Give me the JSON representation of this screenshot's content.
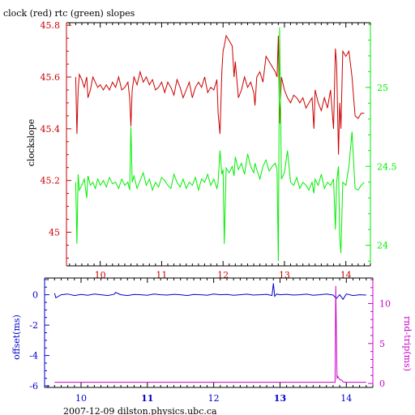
{
  "title": "clock (red) rtc (green) slopes",
  "footer": "2007-12-09  dilston.physics.ubc.ca",
  "colors": {
    "red": "#cc0000",
    "green": "#00ee00",
    "blue": "#0000cc",
    "magenta": "#cc00cc",
    "axis": "#000000"
  },
  "chart_data": [
    {
      "type": "line",
      "title": "clock (red) rtc (green) slopes",
      "ylabel": "clockslope",
      "xlim": [
        9.45,
        14.4
      ],
      "ylim": [
        44.87,
        45.81
      ],
      "y2lim": [
        23.87,
        25.41
      ],
      "xticks": [
        "10",
        "11",
        "12",
        "13",
        "14"
      ],
      "yticks": [
        "45",
        "45.2",
        "45.4",
        "45.6",
        "45.8"
      ],
      "y2ticks": [
        "24",
        "24.5",
        "25"
      ],
      "series": [
        {
          "name": "clock",
          "axis": "left",
          "color": "#cc0000",
          "x": [
            9.6,
            9.62,
            9.64,
            9.66,
            9.7,
            9.74,
            9.78,
            9.8,
            9.84,
            9.88,
            9.92,
            9.96,
            10.0,
            10.05,
            10.1,
            10.15,
            10.2,
            10.25,
            10.3,
            10.35,
            10.4,
            10.45,
            10.48,
            10.5,
            10.52,
            10.55,
            10.6,
            10.65,
            10.7,
            10.75,
            10.8,
            10.85,
            10.9,
            10.95,
            11.0,
            11.05,
            11.1,
            11.15,
            11.2,
            11.25,
            11.3,
            11.35,
            11.4,
            11.45,
            11.5,
            11.55,
            11.6,
            11.65,
            11.7,
            11.75,
            11.8,
            11.85,
            11.9,
            11.92,
            11.95,
            11.98,
            12.0,
            12.02,
            12.05,
            12.1,
            12.15,
            12.18,
            12.2,
            12.25,
            12.3,
            12.35,
            12.4,
            12.45,
            12.5,
            12.52,
            12.55,
            12.6,
            12.65,
            12.7,
            12.75,
            12.8,
            12.85,
            12.88,
            12.9,
            12.92,
            12.95,
            13.0,
            13.05,
            13.1,
            13.15,
            13.2,
            13.25,
            13.3,
            13.35,
            13.4,
            13.45,
            13.48,
            13.5,
            13.55,
            13.6,
            13.65,
            13.7,
            13.75,
            13.8,
            13.83,
            13.85,
            13.88,
            13.9,
            13.92,
            13.95,
            14.0,
            14.05,
            14.1,
            14.15,
            14.2,
            14.25,
            14.3
          ],
          "y": [
            45.6,
            45.38,
            45.55,
            45.61,
            45.59,
            45.56,
            45.6,
            45.52,
            45.55,
            45.6,
            45.58,
            45.56,
            45.57,
            45.55,
            45.57,
            45.55,
            45.58,
            45.56,
            45.6,
            45.55,
            45.56,
            45.58,
            45.52,
            45.41,
            45.55,
            45.6,
            45.57,
            45.62,
            45.58,
            45.6,
            45.57,
            45.59,
            45.55,
            45.56,
            45.58,
            45.54,
            45.58,
            45.56,
            45.53,
            45.59,
            45.56,
            45.52,
            45.55,
            45.58,
            45.52,
            45.56,
            45.58,
            45.56,
            45.6,
            45.54,
            45.56,
            45.55,
            45.59,
            45.46,
            45.38,
            45.62,
            45.7,
            45.72,
            45.76,
            45.74,
            45.72,
            45.6,
            45.66,
            45.52,
            45.55,
            45.6,
            45.56,
            45.58,
            45.54,
            45.49,
            45.6,
            45.62,
            45.58,
            45.68,
            45.66,
            45.64,
            45.62,
            45.6,
            45.76,
            45.42,
            45.6,
            45.55,
            45.52,
            45.5,
            45.53,
            45.52,
            45.5,
            45.52,
            45.48,
            45.5,
            45.52,
            45.4,
            45.55,
            45.5,
            45.47,
            45.52,
            45.48,
            45.55,
            45.4,
            45.71,
            45.65,
            45.3,
            45.5,
            45.4,
            45.7,
            45.68,
            45.7,
            45.6,
            45.45,
            45.44,
            45.46,
            45.46
          ]
        },
        {
          "name": "rtc",
          "axis": "right",
          "color": "#00ee00",
          "x": [
            9.6,
            9.62,
            9.64,
            9.66,
            9.7,
            9.74,
            9.78,
            9.8,
            9.84,
            9.88,
            9.92,
            9.96,
            10.0,
            10.05,
            10.1,
            10.15,
            10.2,
            10.25,
            10.3,
            10.35,
            10.4,
            10.45,
            10.48,
            10.5,
            10.52,
            10.55,
            10.6,
            10.65,
            10.7,
            10.75,
            10.8,
            10.85,
            10.9,
            10.95,
            11.0,
            11.05,
            11.1,
            11.15,
            11.2,
            11.25,
            11.3,
            11.35,
            11.4,
            11.45,
            11.5,
            11.55,
            11.6,
            11.65,
            11.7,
            11.75,
            11.8,
            11.85,
            11.9,
            11.92,
            11.95,
            11.98,
            12.0,
            12.02,
            12.05,
            12.1,
            12.15,
            12.18,
            12.2,
            12.25,
            12.3,
            12.35,
            12.4,
            12.45,
            12.5,
            12.52,
            12.55,
            12.6,
            12.65,
            12.7,
            12.75,
            12.8,
            12.85,
            12.88,
            12.9,
            12.92,
            12.95,
            13.0,
            13.05,
            13.1,
            13.15,
            13.2,
            13.25,
            13.3,
            13.35,
            13.4,
            13.45,
            13.48,
            13.5,
            13.55,
            13.6,
            13.65,
            13.7,
            13.75,
            13.8,
            13.83,
            13.85,
            13.88,
            13.9,
            13.92,
            13.95,
            14.0,
            14.05,
            14.1,
            14.15,
            14.2,
            14.25,
            14.3
          ],
          "y": [
            24.4,
            24.01,
            24.45,
            24.35,
            24.38,
            24.42,
            24.3,
            24.44,
            24.38,
            24.4,
            24.36,
            24.42,
            24.38,
            24.41,
            24.37,
            24.43,
            24.39,
            24.4,
            24.36,
            24.42,
            24.38,
            24.4,
            24.35,
            24.75,
            24.4,
            24.44,
            24.36,
            24.41,
            24.46,
            24.38,
            24.42,
            24.35,
            24.4,
            24.37,
            24.43,
            24.41,
            24.38,
            24.36,
            24.45,
            24.4,
            24.37,
            24.42,
            24.36,
            24.4,
            24.38,
            24.43,
            24.35,
            24.42,
            24.4,
            24.45,
            24.38,
            24.42,
            24.36,
            24.4,
            24.6,
            24.45,
            24.48,
            24.01,
            24.49,
            24.46,
            24.5,
            24.44,
            24.56,
            24.48,
            24.52,
            24.45,
            24.58,
            24.5,
            24.46,
            24.52,
            24.48,
            24.42,
            24.5,
            24.54,
            24.47,
            24.5,
            24.52,
            24.48,
            23.9,
            25.38,
            24.42,
            24.46,
            24.6,
            24.4,
            24.38,
            24.43,
            24.36,
            24.4,
            24.38,
            24.35,
            24.4,
            24.33,
            24.42,
            24.38,
            24.45,
            24.36,
            24.4,
            24.38,
            24.42,
            24.1,
            24.4,
            24.5,
            24.05,
            23.95,
            24.4,
            24.38,
            24.5,
            24.72,
            24.36,
            24.35,
            24.38,
            24.4
          ]
        }
      ]
    },
    {
      "type": "line",
      "ylabel": "offset(ms)",
      "y2label": "rnd-trip(ms)",
      "xlim": [
        9.45,
        14.4
      ],
      "ylim": [
        -6.1,
        1.1
      ],
      "y2lim": [
        -0.5,
        13.2
      ],
      "xticks": [
        "10",
        "11",
        "12",
        "13",
        "14"
      ],
      "yticks": [
        "0",
        "-2",
        "-4",
        "-6"
      ],
      "y2ticks": [
        "0",
        "5",
        "10"
      ],
      "series": [
        {
          "name": "offset",
          "axis": "left",
          "color": "#0000cc",
          "x": [
            9.6,
            9.62,
            9.7,
            9.8,
            9.9,
            10.0,
            10.1,
            10.2,
            10.3,
            10.4,
            10.5,
            10.52,
            10.6,
            10.7,
            10.8,
            10.9,
            11.0,
            11.1,
            11.2,
            11.3,
            11.4,
            11.5,
            11.6,
            11.7,
            11.8,
            11.9,
            12.0,
            12.1,
            12.2,
            12.3,
            12.4,
            12.5,
            12.6,
            12.7,
            12.8,
            12.88,
            12.9,
            12.92,
            12.95,
            13.0,
            13.1,
            13.2,
            13.3,
            13.4,
            13.5,
            13.6,
            13.7,
            13.8,
            13.85,
            13.9,
            13.95,
            14.0,
            14.1,
            14.2,
            14.3
          ],
          "y": [
            0.1,
            -0.2,
            0.0,
            0.05,
            -0.05,
            0.02,
            -0.03,
            0.05,
            0.0,
            -0.05,
            0.03,
            0.15,
            0.0,
            -0.05,
            0.02,
            0.0,
            -0.03,
            0.05,
            0.0,
            -0.02,
            0.03,
            0.0,
            -0.05,
            0.02,
            0.0,
            -0.03,
            0.05,
            0.0,
            0.02,
            -0.03,
            0.0,
            0.04,
            -0.02,
            0.0,
            0.03,
            -0.05,
            0.75,
            -0.1,
            0.05,
            0.0,
            0.03,
            -0.02,
            0.0,
            0.04,
            -0.03,
            0.0,
            0.05,
            -0.02,
            -0.25,
            0.0,
            -0.3,
            0.05,
            -0.05,
            0.0,
            -0.02
          ]
        },
        {
          "name": "rnd-trip",
          "axis": "right",
          "color": "#cc00cc",
          "x": [
            9.6,
            13.83,
            13.84,
            13.86,
            13.87,
            13.9,
            13.93,
            13.95,
            14.0,
            14.3
          ],
          "y": [
            0.15,
            0.15,
            12.2,
            0.6,
            0.9,
            0.5,
            0.4,
            0.2,
            0.15,
            0.15
          ]
        }
      ]
    }
  ]
}
